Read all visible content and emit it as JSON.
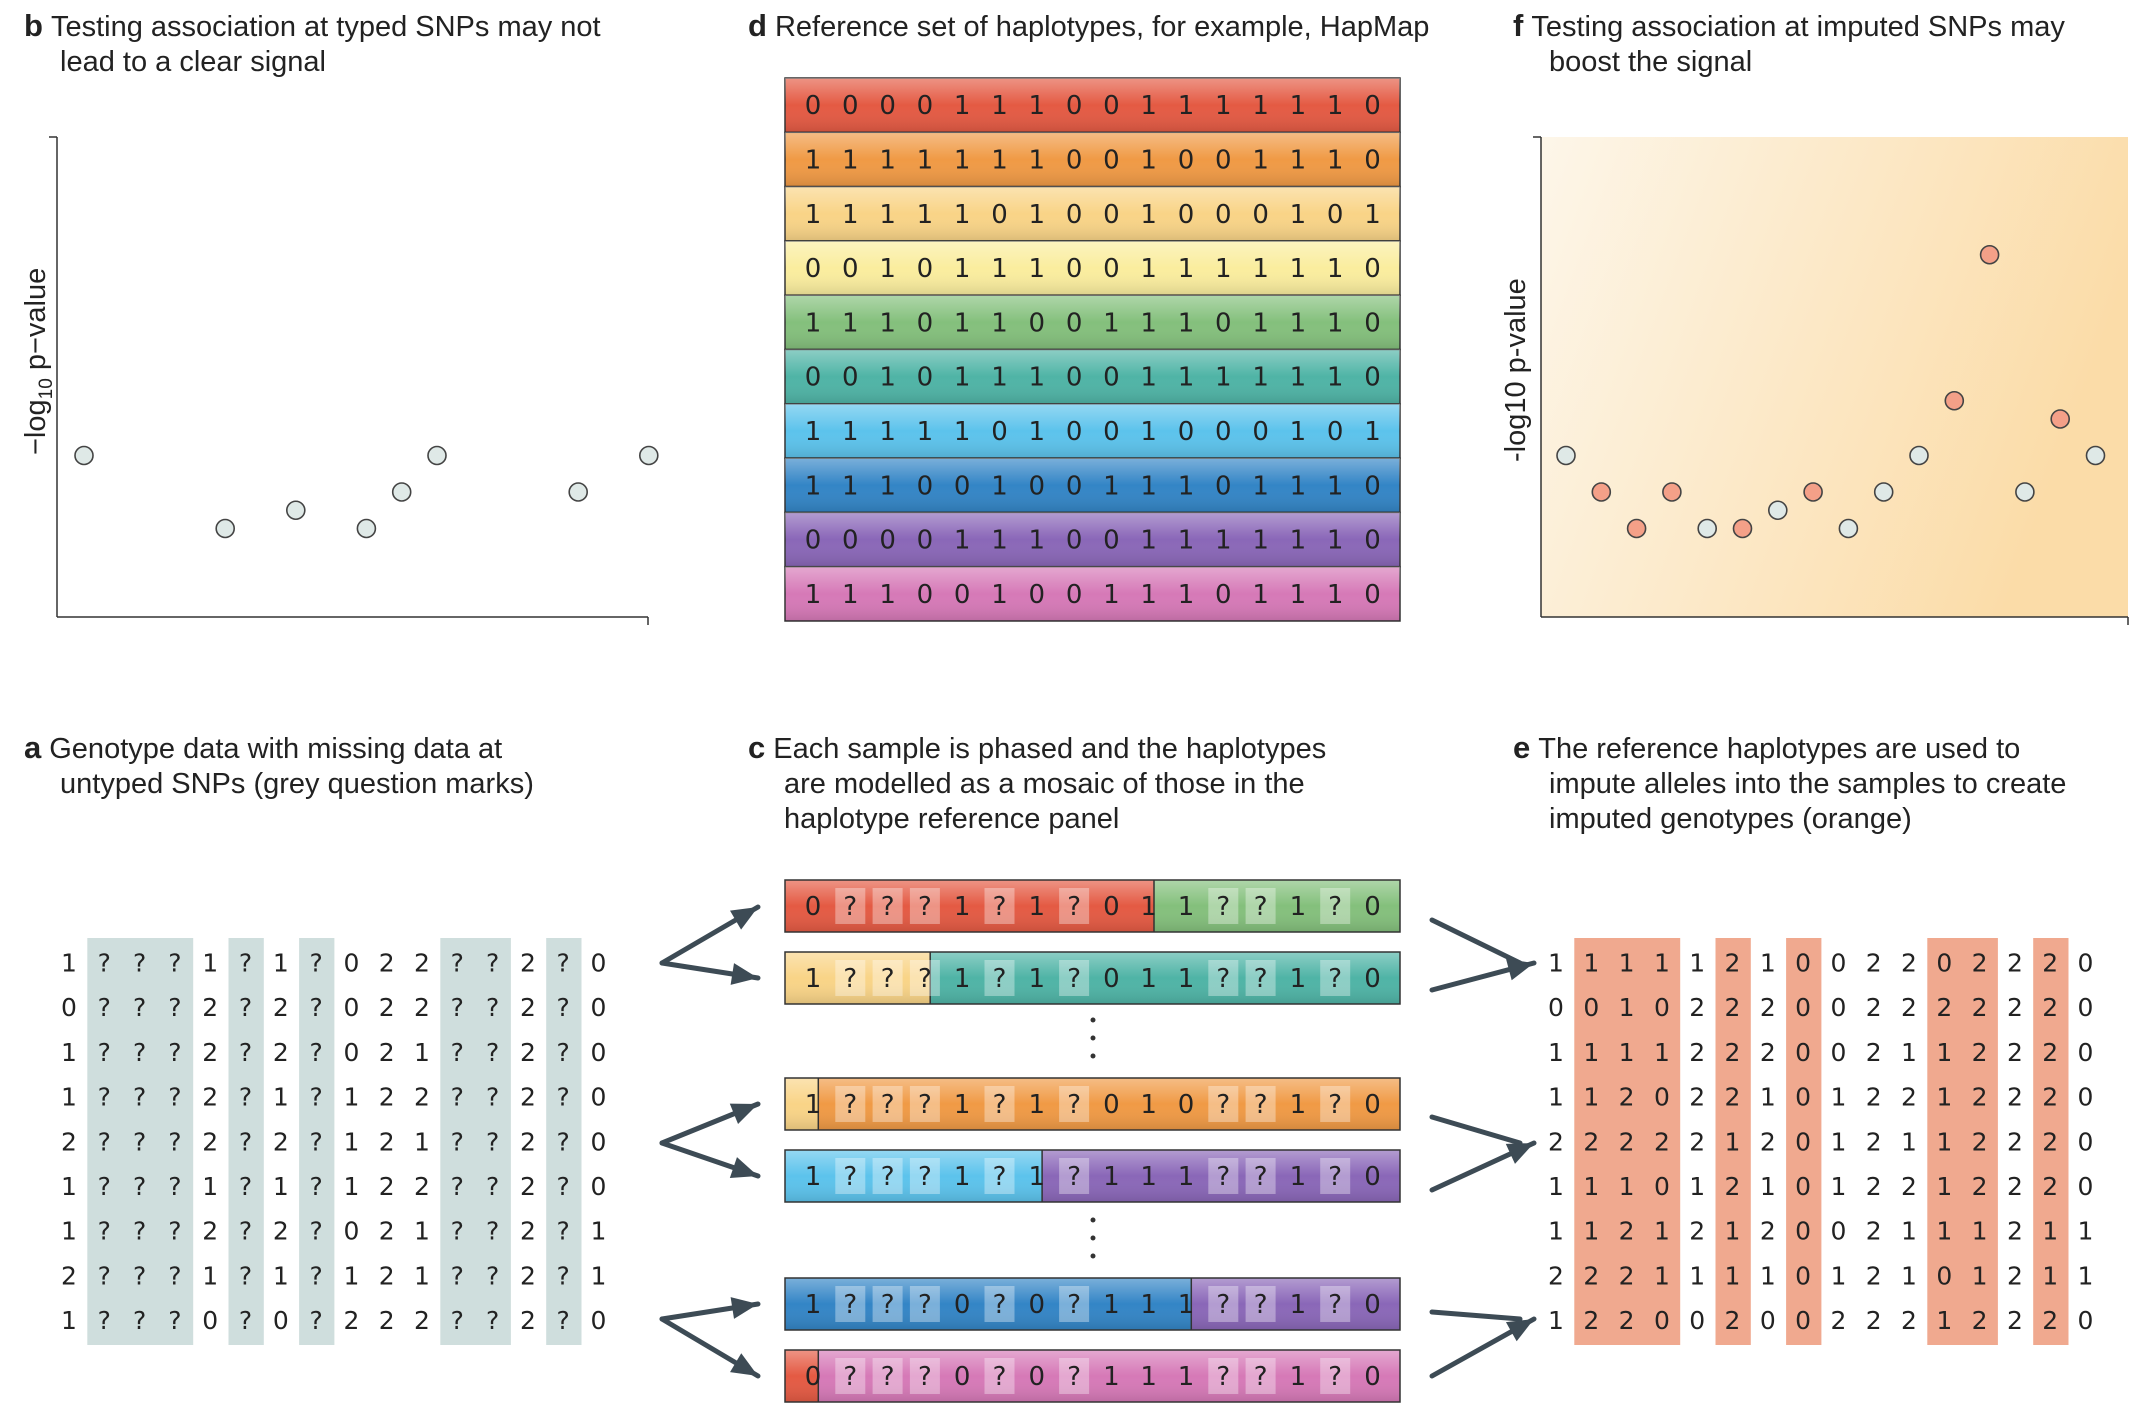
{
  "panels": {
    "b": {
      "letter": "b",
      "title1": "Testing association at typed SNPs may not",
      "title2": "lead to a clear signal",
      "ylabel_main": "−log",
      "ylabel_sub": "10",
      "ylabel_tail": " p−value"
    },
    "d": {
      "letter": "d",
      "title1": "Reference set of haplotypes, for example, HapMap"
    },
    "f": {
      "letter": "f",
      "title1": "Testing association at imputed SNPs may",
      "title2": "boost the signal",
      "ylabel": "-log10 p-value"
    },
    "a": {
      "letter": "a",
      "title1": "Genotype data with missing data at",
      "title2": "untyped SNPs (grey question marks)"
    },
    "c": {
      "letter": "c",
      "title1": "Each sample is phased and the haplotypes",
      "title2": "are modelled as a mosaic of those in the",
      "title3": "haplotype reference panel"
    },
    "e": {
      "letter": "e",
      "title1": "The reference haplotypes are used to",
      "title2": "impute alleles into the samples to create",
      "title3": "imputed genotypes (orange)"
    }
  },
  "plot_b": {
    "points": [
      {
        "snp": 1,
        "y": 3
      },
      {
        "snp": 5,
        "y": 1
      },
      {
        "snp": 7,
        "y": 1.5
      },
      {
        "snp": 9,
        "y": 1
      },
      {
        "snp": 10,
        "y": 2
      },
      {
        "snp": 11,
        "y": 3
      },
      {
        "snp": 15,
        "y": 2
      },
      {
        "snp": 17,
        "y": 3
      }
    ]
  },
  "plot_f": {
    "points": [
      {
        "snp": 1,
        "y": 3,
        "imputed": false
      },
      {
        "snp": 2,
        "y": 2,
        "imputed": true
      },
      {
        "snp": 3,
        "y": 1,
        "imputed": true
      },
      {
        "snp": 4,
        "y": 2,
        "imputed": true
      },
      {
        "snp": 5,
        "y": 1,
        "imputed": false
      },
      {
        "snp": 6,
        "y": 1,
        "imputed": true
      },
      {
        "snp": 7,
        "y": 1.5,
        "imputed": false
      },
      {
        "snp": 8,
        "y": 2,
        "imputed": true
      },
      {
        "snp": 9,
        "y": 1,
        "imputed": false
      },
      {
        "snp": 10,
        "y": 2,
        "imputed": false
      },
      {
        "snp": 11,
        "y": 3,
        "imputed": false
      },
      {
        "snp": 12,
        "y": 4.5,
        "imputed": true
      },
      {
        "snp": 13,
        "y": 8.5,
        "imputed": true
      },
      {
        "snp": 14,
        "y": 2,
        "imputed": false
      },
      {
        "snp": 15,
        "y": 4,
        "imputed": true
      },
      {
        "snp": 16,
        "y": 3,
        "imputed": false
      }
    ]
  },
  "reference_haplotypes": [
    {
      "color": "#e45a43",
      "alleles": "0000111001111110"
    },
    {
      "color": "#f09a45",
      "alleles": "1111111001001110"
    },
    {
      "color": "#f9d487",
      "alleles": "1111101001000101"
    },
    {
      "color": "#faed9e",
      "alleles": "0010111001111110"
    },
    {
      "color": "#84c07c",
      "alleles": "1110110011101110"
    },
    {
      "color": "#4fb4a6",
      "alleles": "0010111001111110"
    },
    {
      "color": "#5cc3ec",
      "alleles": "1111101001000101"
    },
    {
      "color": "#3385c6",
      "alleles": "1110010011101110"
    },
    {
      "color": "#8a67b8",
      "alleles": "0000111001111110"
    },
    {
      "color": "#d679b7",
      "alleles": "1110010011101110"
    }
  ],
  "genotypes_missing": [
    "1???1?1?022??2?0",
    "0???2?2?022??2?0",
    "1???2?2?021??2?0",
    "1???2?1?122??2?0",
    "2???2?2?121??2?0",
    "1???1?1?122??2?0",
    "1???2?2?021??2?1",
    "2???1?1?121??2?1",
    "1???0?0?222??2?0"
  ],
  "genotypes_imputed": [
    "1111121002202220",
    "0010222002222220",
    "1111222002112220",
    "1120221012212220",
    "2222212012112220",
    "1110121012212220",
    "1121212002111211",
    "2221111012101211",
    "1220020022212220"
  ],
  "mosaic_haplotypes": [
    {
      "cells": "0???1?1?011??1?0",
      "split": 10,
      "left_color": "#e45a43",
      "right_color": "#84c07c"
    },
    {
      "cells": "1????1?1?011??1?0",
      "split": 4,
      "left_color": "#f9d487",
      "right_color": "#4fb4a6",
      "display": "1???1?1?011??1?0"
    },
    {
      "cells": "1???1?1?010??1?0",
      "split": 1,
      "left_color": "#f9d487",
      "right_color": "#f09a45"
    },
    {
      "cells": "1???1?1?111??1?0",
      "split": 7,
      "left_color": "#5cc3ec",
      "right_color": "#8a67b8"
    },
    {
      "cells": "1???0?0?111??1?0",
      "split": 11,
      "left_color": "#3385c6",
      "right_color": "#8a67b8"
    },
    {
      "cells": "0???0?0?111??1?0",
      "split": 1,
      "left_color": "#e45a43",
      "right_color": "#d679b7"
    }
  ],
  "colors": {
    "missing_band": "#cfdedd",
    "imputed_band": "#f0a98f",
    "typed_point": "#dfe9e7",
    "imputed_point": "#f4a088",
    "arrow": "#3d4b55",
    "axis": "#333333",
    "signal_bg_start": "#fdf6e9",
    "signal_bg_end": "#fbdca8"
  }
}
